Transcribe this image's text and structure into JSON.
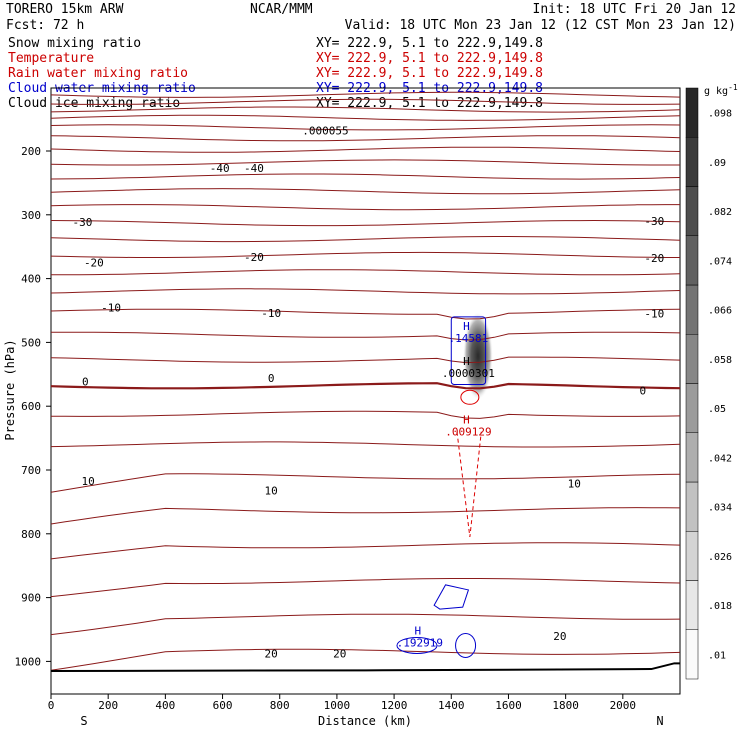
{
  "header": {
    "model": "TORERO  15km ARW",
    "org": "NCAR/MMM",
    "init": "Init: 18 UTC Fri 20 Jan 12",
    "fcst": "Fcst:   72 h",
    "valid": "Valid: 18 UTC Mon 23 Jan 12 (12 CST Mon 23 Jan 12)"
  },
  "fields": [
    {
      "label": "Snow mixing ratio",
      "xy": "XY= 222.9,  5.1 to 222.9,149.8",
      "color": "#000000"
    },
    {
      "label": "Temperature",
      "xy": "XY= 222.9,  5.1 to 222.9,149.8",
      "color": "#cc0000"
    },
    {
      "label": "Rain water mixing ratio",
      "xy": "XY= 222.9,  5.1 to 222.9,149.8",
      "color": "#cc0000"
    },
    {
      "label": "Cloud water mixing ratio",
      "xy": "XY= 222.9,  5.1 to 222.9,149.8",
      "color": "#0000cc"
    },
    {
      "label": "Cloud ice mixing ratio",
      "xy": "XY= 222.9,  5.1 to 222.9,149.8",
      "color": "#000000"
    }
  ],
  "chart_data": {
    "type": "contour",
    "xlabel": "Distance (km)",
    "ylabel": "Pressure (hPa)",
    "xlim": [
      0,
      2200
    ],
    "ylim": [
      1050,
      100
    ],
    "x_ticks": [
      0,
      200,
      400,
      600,
      800,
      1000,
      1200,
      1400,
      1600,
      1800,
      2000
    ],
    "y_ticks": [
      200,
      300,
      400,
      500,
      600,
      700,
      800,
      900,
      1000
    ],
    "x_end_labels": {
      "left": "S",
      "right": "N"
    },
    "temperature_contour_labels": [
      {
        "text": "-40",
        "x": 590,
        "p": 227
      },
      {
        "text": "-40",
        "x": 710,
        "p": 227
      },
      {
        "text": "-30",
        "x": 110,
        "p": 311
      },
      {
        "text": "-30",
        "x": 2110,
        "p": 310
      },
      {
        "text": "-20",
        "x": 150,
        "p": 375
      },
      {
        "text": "-20",
        "x": 710,
        "p": 366
      },
      {
        "text": "-20",
        "x": 2110,
        "p": 368
      },
      {
        "text": "-10",
        "x": 210,
        "p": 445
      },
      {
        "text": "-10",
        "x": 770,
        "p": 454
      },
      {
        "text": "-10",
        "x": 2110,
        "p": 455
      },
      {
        "text": "0",
        "x": 120,
        "p": 561
      },
      {
        "text": "0",
        "x": 770,
        "p": 556
      },
      {
        "text": "0",
        "x": 2070,
        "p": 575
      },
      {
        "text": "10",
        "x": 130,
        "p": 717
      },
      {
        "text": "10",
        "x": 770,
        "p": 732
      },
      {
        "text": "10",
        "x": 1830,
        "p": 721
      },
      {
        "text": "20",
        "x": 770,
        "p": 988
      },
      {
        "text": "20",
        "x": 1010,
        "p": 988
      },
      {
        "text": "20",
        "x": 1780,
        "p": 960
      }
    ],
    "extrema": [
      {
        "label": "H",
        "value": ".14581",
        "field": "cloud water",
        "x": 1460,
        "p": 493,
        "color": "#0000cc"
      },
      {
        "label": "H",
        "value": ".0000301",
        "field": "snow",
        "x": 1460,
        "p": 548,
        "color": "#000000"
      },
      {
        "label": "H",
        "value": ".009129",
        "field": "rain water",
        "x": 1460,
        "p": 640,
        "color": "#cc0000"
      },
      {
        "label": "H",
        "value": ".192919",
        "field": "cloud water",
        "x": 1290,
        "p": 970,
        "color": "#0000cc"
      },
      {
        "label": "",
        "value": ".000055",
        "field": "cloud ice",
        "x": 960,
        "p": 168,
        "color": "#000000"
      }
    ],
    "colorbar": {
      "unit": "g kg",
      "unit_sup": "-1",
      "ticks": [
        ".01",
        ".018",
        ".026",
        ".034",
        ".042",
        ".05",
        ".058",
        ".066",
        ".074",
        ".082",
        ".09",
        ".098"
      ]
    },
    "colors": {
      "temperature": "#8b1a1a",
      "rain": "#dd0000",
      "cloud_water": "#0000cc",
      "terrain": "#000000"
    }
  }
}
